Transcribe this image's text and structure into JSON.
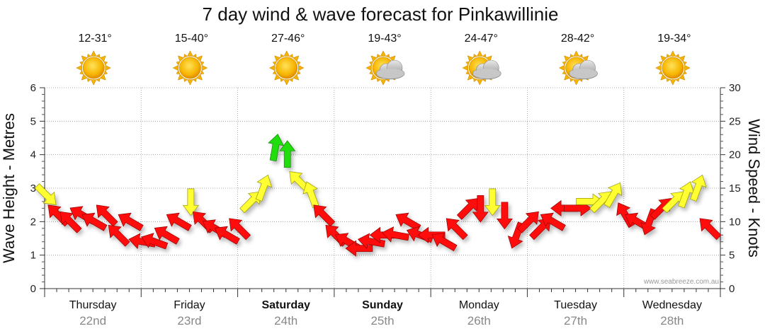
{
  "chart_data": {
    "type": "line",
    "title": "7 day wind & wave forecast for Pinkawillinie",
    "ylabel_left": "Wave Height - Metres",
    "ylabel_right": "Wind Speed - Knots",
    "ylim_left": [
      0,
      6
    ],
    "ylim_right": [
      0,
      30
    ],
    "yticks_left": [
      "0",
      "1",
      "2",
      "3",
      "4",
      "5",
      "6"
    ],
    "yticks_right": [
      "0",
      "5",
      "10",
      "15",
      "20",
      "25",
      "30"
    ],
    "credit": "www.seabreeze.com.au",
    "days": [
      {
        "name": "Thursday",
        "date": "22nd",
        "temp": "12-31°",
        "weather": "sunny",
        "bold": false
      },
      {
        "name": "Friday",
        "date": "23rd",
        "temp": "15-40°",
        "weather": "sunny",
        "bold": false
      },
      {
        "name": "Saturday",
        "date": "24th",
        "temp": "27-46°",
        "weather": "sunny",
        "bold": true
      },
      {
        "name": "Sunday",
        "date": "25th",
        "temp": "19-43°",
        "weather": "partly-cloudy",
        "bold": true
      },
      {
        "name": "Monday",
        "date": "26th",
        "temp": "24-47°",
        "weather": "partly-cloudy",
        "bold": false
      },
      {
        "name": "Tuesday",
        "date": "27th",
        "temp": "28-42°",
        "weather": "partly-cloudy",
        "bold": false
      },
      {
        "name": "Wednesday",
        "date": "28th",
        "temp": "19-34°",
        "weather": "sunny",
        "bold": false
      }
    ],
    "series": [
      {
        "name": "Wind",
        "units": "knots",
        "hours": [
          0,
          3,
          6,
          9,
          12,
          15,
          18,
          21,
          24,
          27,
          30,
          33,
          36,
          39,
          42,
          45,
          48,
          51,
          54,
          57,
          60,
          63,
          66,
          69,
          72,
          75,
          78,
          81,
          84,
          87,
          90,
          93,
          96,
          99,
          102,
          105,
          108,
          111,
          114,
          117,
          120,
          123,
          126,
          129,
          132,
          135,
          138,
          141,
          144,
          147,
          150,
          153,
          156,
          159,
          162,
          165
        ],
        "knots": [
          14,
          11,
          10,
          11,
          10,
          11,
          8,
          10,
          7,
          7,
          8,
          10,
          13,
          10,
          9,
          8,
          9,
          13,
          15,
          21,
          20,
          16,
          14,
          11,
          8,
          7,
          6,
          7,
          8,
          8,
          10,
          8,
          8,
          7,
          9,
          12,
          12,
          13,
          11,
          8,
          10,
          9,
          10,
          12,
          12,
          13,
          13,
          14,
          11,
          10,
          10,
          12,
          13,
          14,
          15,
          9
        ],
        "direction_deg": [
          135,
          315,
          315,
          300,
          300,
          315,
          315,
          300,
          280,
          290,
          300,
          300,
          180,
          315,
          300,
          300,
          315,
          45,
          20,
          10,
          0,
          315,
          340,
          315,
          315,
          300,
          270,
          280,
          270,
          280,
          300,
          290,
          270,
          300,
          315,
          45,
          180,
          180,
          180,
          200,
          45,
          45,
          300,
          270,
          90,
          90,
          45,
          30,
          330,
          300,
          200,
          45,
          45,
          20,
          20,
          315
        ]
      }
    ]
  }
}
